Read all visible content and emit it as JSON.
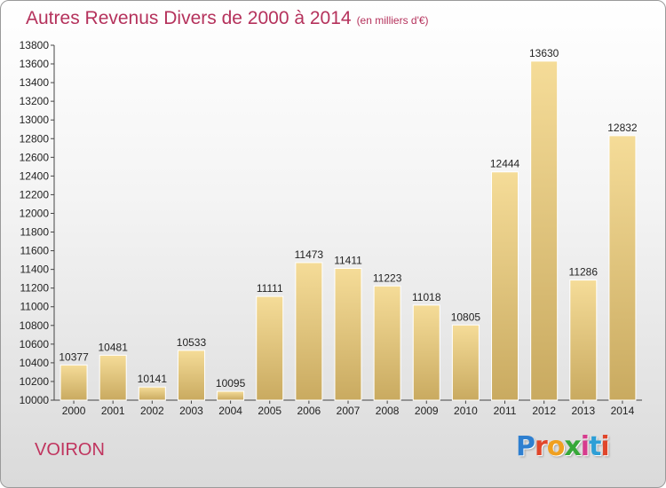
{
  "title": "Autres Revenus Divers de 2000 à 2014",
  "title_unit": "(en milliers d'€)",
  "town": "VOIRON",
  "logo": {
    "text": "Proxiti",
    "letter_colors": [
      "#2e7fd0",
      "#e0462b",
      "#f0a020",
      "#36a838",
      "#d63c8e",
      "#2e9fd6",
      "#e0462b"
    ]
  },
  "colors": {
    "title": "#b5325c",
    "bar_light": "#f5dc98",
    "bar_dark": "#c9aa60",
    "axis": "#444444"
  },
  "chart_data": {
    "type": "bar",
    "categories": [
      "2000",
      "2001",
      "2002",
      "2003",
      "2004",
      "2005",
      "2006",
      "2007",
      "2008",
      "2009",
      "2010",
      "2011",
      "2012",
      "2013",
      "2014"
    ],
    "values": [
      10377,
      10481,
      10141,
      10533,
      10095,
      11111,
      11473,
      11411,
      11223,
      11018,
      10805,
      12444,
      13630,
      11286,
      12832
    ],
    "ylim": [
      10000,
      13800
    ],
    "yticks": [
      10000,
      10200,
      10400,
      10600,
      10800,
      11000,
      11200,
      11400,
      11600,
      11800,
      12000,
      12200,
      12400,
      12600,
      12800,
      13000,
      13200,
      13400,
      13600,
      13800
    ],
    "grid": false,
    "data_labels": true
  }
}
